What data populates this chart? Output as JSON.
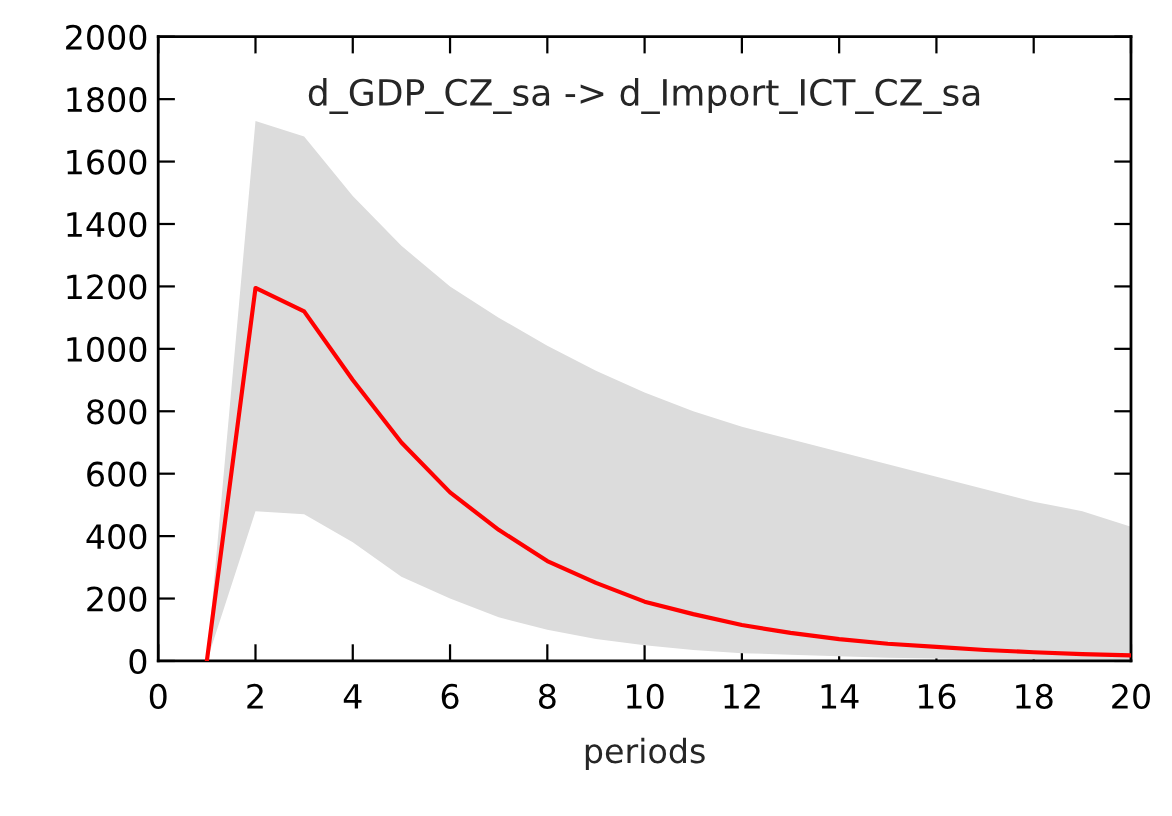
{
  "chart_data": {
    "type": "line",
    "title": "d_GDP_CZ_sa -> d_Import_ICT_CZ_sa",
    "xlabel": "periods",
    "x": [
      1,
      2,
      3,
      4,
      5,
      6,
      7,
      8,
      9,
      10,
      11,
      12,
      13,
      14,
      15,
      16,
      17,
      18,
      19,
      20
    ],
    "series": [
      {
        "color": "#ff0000",
        "values": [
          0,
          1195,
          1120,
          900,
          700,
          540,
          420,
          320,
          250,
          190,
          150,
          115,
          90,
          70,
          55,
          45,
          35,
          28,
          22,
          18
        ],
        "lower": [
          0,
          480,
          470,
          380,
          270,
          200,
          140,
          100,
          70,
          50,
          35,
          25,
          20,
          15,
          10,
          8,
          6,
          5,
          4,
          3
        ],
        "upper": [
          0,
          1730,
          1680,
          1490,
          1330,
          1200,
          1100,
          1010,
          930,
          860,
          800,
          750,
          710,
          670,
          630,
          590,
          550,
          510,
          480,
          430
        ]
      }
    ],
    "xlim": [
      0,
      20
    ],
    "xticks": [
      0,
      2,
      4,
      6,
      8,
      10,
      12,
      14,
      16,
      18,
      20
    ],
    "ylim": [
      0,
      2000
    ],
    "yticks": [
      0,
      200,
      400,
      600,
      800,
      1000,
      1200,
      1400,
      1600,
      1800,
      2000
    ],
    "grid": false,
    "legend": false
  }
}
